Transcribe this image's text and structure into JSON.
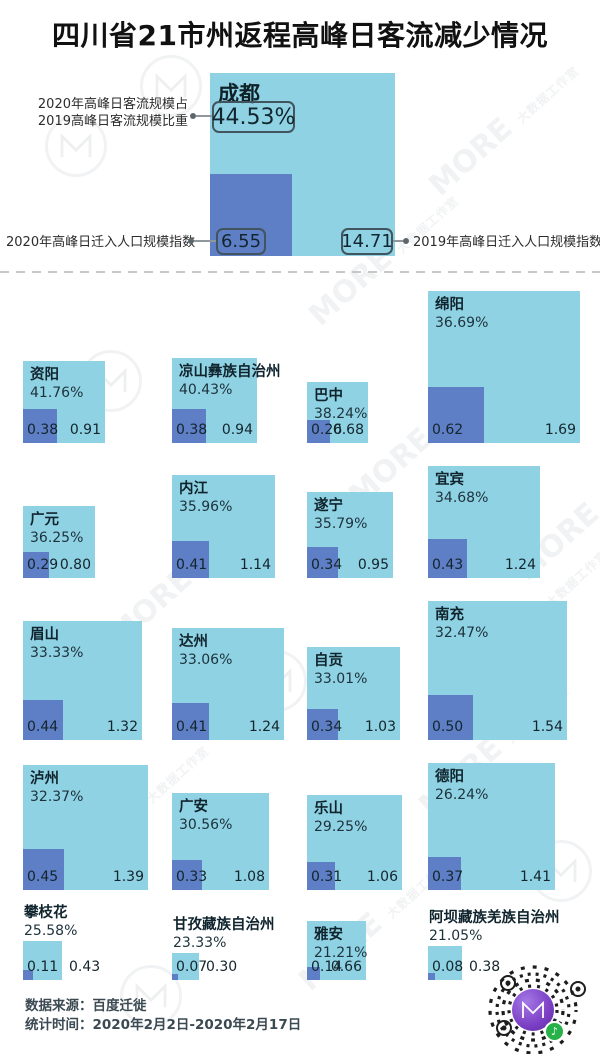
{
  "title": "四川省21市州返程高峰日客流减少情况",
  "colors": {
    "square_2019": "#8FD2E3",
    "square_2020": "#5E7EC6",
    "qr_purple": "#7B3FC4",
    "qr_badge_green": "#27B148"
  },
  "featured": {
    "name": "成都",
    "pct": "44.53%",
    "v2020": "6.55",
    "v2019": "14.71",
    "label_pct_line1": "2020年高峰日客流规模占",
    "label_pct_line2": "2019高峰日客流规模比重",
    "label_2020": "2020年高峰日迁入人口规模指数",
    "label_2019": "2019年高峰日迁入人口规模指数"
  },
  "grid": {
    "rows": [
      {
        "cities": [
          {
            "name": "资阳",
            "pct": "41.76%",
            "v2020": "0.38",
            "v2019": "0.91"
          },
          {
            "name": "凉山彝族自治州",
            "pct": "40.43%",
            "v2020": "0.38",
            "v2019": "0.94"
          },
          {
            "name": "巴中",
            "pct": "38.24%",
            "v2020": "0.26",
            "v2019": "0.68"
          },
          {
            "name": "绵阳",
            "pct": "36.69%",
            "v2020": "0.62",
            "v2019": "1.69"
          }
        ]
      },
      {
        "cities": [
          {
            "name": "广元",
            "pct": "36.25%",
            "v2020": "0.29",
            "v2019": "0.80"
          },
          {
            "name": "内江",
            "pct": "35.96%",
            "v2020": "0.41",
            "v2019": "1.14"
          },
          {
            "name": "遂宁",
            "pct": "35.79%",
            "v2020": "0.34",
            "v2019": "0.95"
          },
          {
            "name": "宜宾",
            "pct": "34.68%",
            "v2020": "0.43",
            "v2019": "1.24"
          }
        ]
      },
      {
        "cities": [
          {
            "name": "眉山",
            "pct": "33.33%",
            "v2020": "0.44",
            "v2019": "1.32"
          },
          {
            "name": "达州",
            "pct": "33.06%",
            "v2020": "0.41",
            "v2019": "1.24"
          },
          {
            "name": "自贡",
            "pct": "33.01%",
            "v2020": "0.34",
            "v2019": "1.03"
          },
          {
            "name": "南充",
            "pct": "32.47%",
            "v2020": "0.50",
            "v2019": "1.54"
          }
        ]
      },
      {
        "cities": [
          {
            "name": "泸州",
            "pct": "32.37%",
            "v2020": "0.45",
            "v2019": "1.39"
          },
          {
            "name": "广安",
            "pct": "30.56%",
            "v2020": "0.33",
            "v2019": "1.08"
          },
          {
            "name": "乐山",
            "pct": "29.25%",
            "v2020": "0.31",
            "v2019": "1.06"
          },
          {
            "name": "德阳",
            "pct": "26.24%",
            "v2020": "0.37",
            "v2019": "1.41"
          }
        ]
      },
      {
        "cities": [
          {
            "name": "攀枝花",
            "pct": "25.58%",
            "v2020": "0.11",
            "v2019": "0.43"
          },
          {
            "name": "甘孜藏族自治州",
            "pct": "23.33%",
            "v2020": "0.07",
            "v2019": "0.30"
          },
          {
            "name": "雅安",
            "pct": "21.21%",
            "v2020": "0.14",
            "v2019": "0.66"
          },
          {
            "name": "阿坝藏族羌族自治州",
            "pct": "21.05%",
            "v2020": "0.08",
            "v2019": "0.38"
          }
        ]
      }
    ]
  },
  "footer": {
    "source": "数据来源：百度迁徙",
    "time": "统计时间：2020年2月2日-2020年2月17日"
  },
  "watermark": {
    "brand": "MORE",
    "studio": "大数据工作室"
  },
  "chart_data": {
    "type": "bar",
    "title": "四川省21市州返程高峰日客流减少情况",
    "note": "proportional nested squares; square side length encodes the index value",
    "categories": [
      "成都",
      "资阳",
      "凉山彝族自治州",
      "巴中",
      "绵阳",
      "广元",
      "内江",
      "遂宁",
      "宜宾",
      "眉山",
      "达州",
      "自贡",
      "南充",
      "泸州",
      "广安",
      "乐山",
      "德阳",
      "攀枝花",
      "甘孜藏族自治州",
      "雅安",
      "阿坝藏族羌族自治州"
    ],
    "series": [
      {
        "name": "2020年高峰日迁入人口规模指数",
        "values": [
          6.55,
          0.38,
          0.38,
          0.26,
          0.62,
          0.29,
          0.41,
          0.34,
          0.43,
          0.44,
          0.41,
          0.34,
          0.5,
          0.45,
          0.33,
          0.31,
          0.37,
          0.11,
          0.07,
          0.14,
          0.08
        ]
      },
      {
        "name": "2019年高峰日迁入人口规模指数",
        "values": [
          14.71,
          0.91,
          0.94,
          0.68,
          1.69,
          0.8,
          1.14,
          0.95,
          1.24,
          1.32,
          1.24,
          1.03,
          1.54,
          1.39,
          1.08,
          1.06,
          1.41,
          0.43,
          0.3,
          0.66,
          0.38
        ]
      },
      {
        "name": "2020年高峰日客流规模占2019高峰日客流规模比重(%)",
        "values": [
          44.53,
          41.76,
          40.43,
          38.24,
          36.69,
          36.25,
          35.96,
          35.79,
          34.68,
          33.33,
          33.06,
          33.01,
          32.47,
          32.37,
          30.56,
          29.25,
          26.24,
          25.58,
          23.33,
          21.21,
          21.05
        ]
      }
    ],
    "legend_position": "callout-labels-on-featured-chart",
    "grid": false,
    "source": "数据来源：百度迁徙",
    "period": "统计时间：2020年2月2日-2020年2月17日"
  }
}
